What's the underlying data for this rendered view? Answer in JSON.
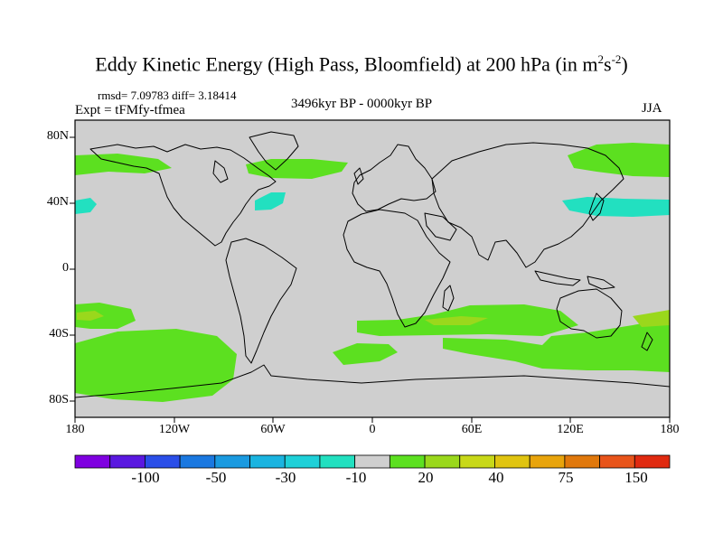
{
  "title": {
    "main": "Eddy Kinetic Energy (High Pass, Bloomfield) at 200 hPa (in m",
    "sup1": "2",
    "mid": "s",
    "sup2": "-2",
    "end": ")"
  },
  "stats": "rmsd= 7.09783 diff= 3.18414",
  "experiment": "Expt = tFMfy-tfmea",
  "period": "3496kyr BP - 0000kyr BP",
  "season": "JJA",
  "lat_labels": [
    "80N",
    "40N",
    "0",
    "40S",
    "80S"
  ],
  "lon_labels": [
    "180",
    "120W",
    "60W",
    "0",
    "60E",
    "120E",
    "180"
  ],
  "colorbar": {
    "colors": [
      "#7f00e0",
      "#5a18e0",
      "#2a4ee8",
      "#1a78e0",
      "#1a9ae0",
      "#1ab4e0",
      "#1ed0d8",
      "#22e0c0",
      "#cfcfcf",
      "#5ce020",
      "#9ad81c",
      "#c8d818",
      "#e0c410",
      "#e8a40c",
      "#e0780c",
      "#e8541a",
      "#e02a10"
    ],
    "labels": [
      "-100",
      "-50",
      "-30",
      "-10",
      "20",
      "40",
      "75",
      "150"
    ]
  },
  "colors": {
    "ocean_land_bg": "#cfcfcf",
    "green": "#5ce020",
    "yellow_green": "#9ad81c",
    "cyan": "#22e0c0"
  }
}
